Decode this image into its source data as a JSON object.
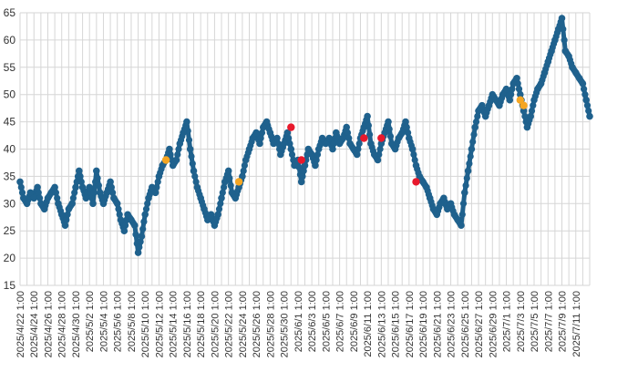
{
  "chart_data": {
    "type": "scatter",
    "title": "",
    "xlabel": "",
    "ylabel": "",
    "ylim": [
      15,
      65
    ],
    "yticks": [
      15,
      20,
      25,
      30,
      35,
      40,
      45,
      50,
      55,
      60,
      65
    ],
    "x_labels": [
      "2025/4/22 1:00",
      "2025/4/24 1:00",
      "2025/4/26 1:00",
      "2025/4/28 1:00",
      "2025/4/30 1:00",
      "2025/5/2 1:00",
      "2025/5/4 1:00",
      "2025/5/6 1:00",
      "2025/5/8 1:00",
      "2025/5/10 1:00",
      "2025/5/12 1:00",
      "2025/5/14 1:00",
      "2025/5/16 1:00",
      "2025/5/18 1:00",
      "2025/5/20 1:00",
      "2025/5/22 1:00",
      "2025/5/24 1:00",
      "2025/5/26 1:00",
      "2025/5/28 1:00",
      "2025/5/30 1:00",
      "2025/6/1 1:00",
      "2025/6/3 1:00",
      "2025/6/5 1:00",
      "2025/6/7 1:00",
      "2025/6/9 1:00",
      "2025/6/11 1:00",
      "2025/6/13 1:00",
      "2025/6/15 1:00",
      "2025/6/17 1:00",
      "2025/6/19 1:00",
      "2025/6/21 1:00",
      "2025/6/23 1:00",
      "2025/6/25 1:00",
      "2025/6/27 1:00",
      "2025/6/29 1:00",
      "2025/7/1 1:00",
      "2025/7/3 1:00",
      "2025/7/5 1:00",
      "2025/7/7 1:00",
      "2025/7/9 1:00",
      "2025/7/11 1:00"
    ],
    "x_range": [
      "2025/4/22 1:00",
      "2025/7/13 1:00"
    ],
    "grid": true,
    "legend": "none",
    "colors": {
      "main": "#1f618d",
      "orange": "#f5a623",
      "red": "#e8192c",
      "grid": "#d6d6d6"
    },
    "series": [
      {
        "color": "#1f618d",
        "points": [
          [
            "2025/4/22 1:00",
            34
          ],
          [
            "2025/4/22 13:00",
            31
          ],
          [
            "2025/4/23 1:00",
            30
          ],
          [
            "2025/4/23 13:00",
            32
          ],
          [
            "2025/4/24 1:00",
            31
          ],
          [
            "2025/4/24 13:00",
            33
          ],
          [
            "2025/4/25 1:00",
            30
          ],
          [
            "2025/4/25 13:00",
            29
          ],
          [
            "2025/4/26 1:00",
            31
          ],
          [
            "2025/4/26 13:00",
            32
          ],
          [
            "2025/4/27 1:00",
            33
          ],
          [
            "2025/4/27 13:00",
            30
          ],
          [
            "2025/4/28 1:00",
            28
          ],
          [
            "2025/4/28 13:00",
            26
          ],
          [
            "2025/4/29 1:00",
            29
          ],
          [
            "2025/4/29 13:00",
            30
          ],
          [
            "2025/4/30 1:00",
            33
          ],
          [
            "2025/4/30 13:00",
            36
          ],
          [
            "2025/5/1 1:00",
            33
          ],
          [
            "2025/5/1 13:00",
            31
          ],
          [
            "2025/5/2 1:00",
            33
          ],
          [
            "2025/5/2 13:00",
            30
          ],
          [
            "2025/5/3 1:00",
            36
          ],
          [
            "2025/5/3 13:00",
            32
          ],
          [
            "2025/5/4 1:00",
            30
          ],
          [
            "2025/5/4 13:00",
            32
          ],
          [
            "2025/5/5 1:00",
            34
          ],
          [
            "2025/5/5 13:00",
            31
          ],
          [
            "2025/5/6 1:00",
            30
          ],
          [
            "2025/5/6 13:00",
            27
          ],
          [
            "2025/5/7 1:00",
            25
          ],
          [
            "2025/5/7 13:00",
            28
          ],
          [
            "2025/5/8 1:00",
            27
          ],
          [
            "2025/5/8 13:00",
            26
          ],
          [
            "2025/5/9 1:00",
            21
          ],
          [
            "2025/5/9 13:00",
            24
          ],
          [
            "2025/5/10 1:00",
            28
          ],
          [
            "2025/5/10 13:00",
            31
          ],
          [
            "2025/5/11 1:00",
            33
          ],
          [
            "2025/5/11 13:00",
            32
          ],
          [
            "2025/5/12 1:00",
            35
          ],
          [
            "2025/5/12 13:00",
            37
          ],
          [
            "2025/5/13 1:00",
            38
          ],
          [
            "2025/5/13 13:00",
            40
          ],
          [
            "2025/5/14 1:00",
            37
          ],
          [
            "2025/5/14 13:00",
            38
          ],
          [
            "2025/5/15 1:00",
            41
          ],
          [
            "2025/5/15 13:00",
            43
          ],
          [
            "2025/5/16 1:00",
            45
          ],
          [
            "2025/5/16 13:00",
            40
          ],
          [
            "2025/5/17 1:00",
            36
          ],
          [
            "2025/5/17 13:00",
            33
          ],
          [
            "2025/5/18 1:00",
            31
          ],
          [
            "2025/5/18 13:00",
            29
          ],
          [
            "2025/5/19 1:00",
            27
          ],
          [
            "2025/5/19 13:00",
            28
          ],
          [
            "2025/5/20 1:00",
            26
          ],
          [
            "2025/5/20 13:00",
            28
          ],
          [
            "2025/5/21 1:00",
            31
          ],
          [
            "2025/5/21 13:00",
            34
          ],
          [
            "2025/5/22 1:00",
            36
          ],
          [
            "2025/5/22 13:00",
            32
          ],
          [
            "2025/5/23 1:00",
            31
          ],
          [
            "2025/5/23 13:00",
            33
          ],
          [
            "2025/5/24 1:00",
            35
          ],
          [
            "2025/5/24 13:00",
            38
          ],
          [
            "2025/5/25 1:00",
            40
          ],
          [
            "2025/5/25 13:00",
            42
          ],
          [
            "2025/5/26 1:00",
            43
          ],
          [
            "2025/5/26 13:00",
            41
          ],
          [
            "2025/5/27 1:00",
            44
          ],
          [
            "2025/5/27 13:00",
            45
          ],
          [
            "2025/5/28 1:00",
            43
          ],
          [
            "2025/5/28 13:00",
            41
          ],
          [
            "2025/5/29 1:00",
            42
          ],
          [
            "2025/5/29 13:00",
            39
          ],
          [
            "2025/5/30 1:00",
            41
          ],
          [
            "2025/5/30 13:00",
            43
          ],
          [
            "2025/5/31 1:00",
            40
          ],
          [
            "2025/5/31 13:00",
            37
          ],
          [
            "2025/6/1 1:00",
            38
          ],
          [
            "2025/6/1 13:00",
            34
          ],
          [
            "2025/6/2 1:00",
            37
          ],
          [
            "2025/6/2 13:00",
            40
          ],
          [
            "2025/6/3 1:00",
            39
          ],
          [
            "2025/6/3 13:00",
            37
          ],
          [
            "2025/6/4 1:00",
            40
          ],
          [
            "2025/6/4 13:00",
            42
          ],
          [
            "2025/6/5 1:00",
            41
          ],
          [
            "2025/6/5 13:00",
            42
          ],
          [
            "2025/6/6 1:00",
            40
          ],
          [
            "2025/6/6 13:00",
            43
          ],
          [
            "2025/6/7 1:00",
            41
          ],
          [
            "2025/6/7 13:00",
            42
          ],
          [
            "2025/6/8 1:00",
            44
          ],
          [
            "2025/6/8 13:00",
            41
          ],
          [
            "2025/6/9 1:00",
            40
          ],
          [
            "2025/6/9 13:00",
            39
          ],
          [
            "2025/6/10 1:00",
            42
          ],
          [
            "2025/6/10 13:00",
            44
          ],
          [
            "2025/6/11 1:00",
            46
          ],
          [
            "2025/6/11 13:00",
            41
          ],
          [
            "2025/6/12 1:00",
            39
          ],
          [
            "2025/6/12 13:00",
            38
          ],
          [
            "2025/6/13 1:00",
            41
          ],
          [
            "2025/6/13 13:00",
            43
          ],
          [
            "2025/6/14 1:00",
            45
          ],
          [
            "2025/6/14 13:00",
            41
          ],
          [
            "2025/6/15 1:00",
            40
          ],
          [
            "2025/6/15 13:00",
            42
          ],
          [
            "2025/6/16 1:00",
            43
          ],
          [
            "2025/6/16 13:00",
            45
          ],
          [
            "2025/6/17 1:00",
            42
          ],
          [
            "2025/6/17 13:00",
            40
          ],
          [
            "2025/6/18 1:00",
            37
          ],
          [
            "2025/6/18 13:00",
            35
          ],
          [
            "2025/6/19 1:00",
            34
          ],
          [
            "2025/6/19 13:00",
            33
          ],
          [
            "2025/6/20 1:00",
            31
          ],
          [
            "2025/6/20 13:00",
            29
          ],
          [
            "2025/6/21 1:00",
            28
          ],
          [
            "2025/6/21 13:00",
            30
          ],
          [
            "2025/6/22 1:00",
            31
          ],
          [
            "2025/6/22 13:00",
            29
          ],
          [
            "2025/6/23 1:00",
            30
          ],
          [
            "2025/6/23 13:00",
            28
          ],
          [
            "2025/6/24 1:00",
            27
          ],
          [
            "2025/6/24 13:00",
            26
          ],
          [
            "2025/6/25 1:00",
            32
          ],
          [
            "2025/6/25 13:00",
            36
          ],
          [
            "2025/6/26 1:00",
            40
          ],
          [
            "2025/6/26 13:00",
            44
          ],
          [
            "2025/6/27 1:00",
            47
          ],
          [
            "2025/6/27 13:00",
            48
          ],
          [
            "2025/6/28 1:00",
            46
          ],
          [
            "2025/6/28 13:00",
            48
          ],
          [
            "2025/6/29 1:00",
            50
          ],
          [
            "2025/6/29 13:00",
            49
          ],
          [
            "2025/6/30 1:00",
            48
          ],
          [
            "2025/6/30 13:00",
            50
          ],
          [
            "2025/7/1 1:00",
            51
          ],
          [
            "2025/7/1 13:00",
            49
          ],
          [
            "2025/7/2 1:00",
            52
          ],
          [
            "2025/7/2 13:00",
            53
          ],
          [
            "2025/7/3 1:00",
            50
          ],
          [
            "2025/7/3 13:00",
            47
          ],
          [
            "2025/7/4 1:00",
            44
          ],
          [
            "2025/7/4 13:00",
            46
          ],
          [
            "2025/7/5 1:00",
            49
          ],
          [
            "2025/7/5 13:00",
            51
          ],
          [
            "2025/7/6 1:00",
            52
          ],
          [
            "2025/7/6 13:00",
            54
          ],
          [
            "2025/7/7 1:00",
            56
          ],
          [
            "2025/7/7 13:00",
            58
          ],
          [
            "2025/7/8 1:00",
            60
          ],
          [
            "2025/7/8 13:00",
            62
          ],
          [
            "2025/7/9 1:00",
            64
          ],
          [
            "2025/7/9 13:00",
            58
          ],
          [
            "2025/7/10 1:00",
            57
          ],
          [
            "2025/7/10 13:00",
            55
          ],
          [
            "2025/7/11 1:00",
            54
          ],
          [
            "2025/7/11 13:00",
            53
          ],
          [
            "2025/7/12 1:00",
            52
          ],
          [
            "2025/7/12 13:00",
            49
          ],
          [
            "2025/7/13 1:00",
            46
          ]
        ]
      },
      {
        "color": "#f5a623",
        "points": [
          [
            "2025/5/13 1:00",
            38
          ],
          [
            "2025/5/23 13:00",
            34
          ],
          [
            "2025/7/3 1:00",
            49
          ],
          [
            "2025/7/3 13:00",
            48
          ]
        ]
      },
      {
        "color": "#e8192c",
        "points": [
          [
            "2025/5/31 1:00",
            44
          ],
          [
            "2025/6/1 13:00",
            38
          ],
          [
            "2025/6/10 13:00",
            42
          ],
          [
            "2025/6/13 1:00",
            42
          ],
          [
            "2025/6/18 1:00",
            34
          ]
        ]
      }
    ]
  }
}
